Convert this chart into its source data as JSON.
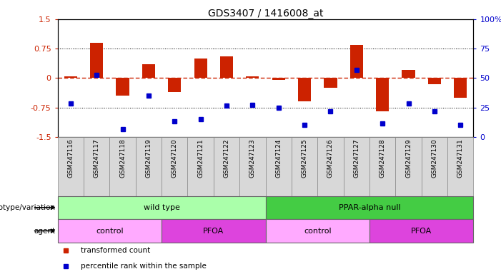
{
  "title": "GDS3407 / 1416008_at",
  "samples": [
    "GSM247116",
    "GSM247117",
    "GSM247118",
    "GSM247119",
    "GSM247120",
    "GSM247121",
    "GSM247122",
    "GSM247123",
    "GSM247124",
    "GSM247125",
    "GSM247126",
    "GSM247127",
    "GSM247128",
    "GSM247129",
    "GSM247130",
    "GSM247131"
  ],
  "bar_values": [
    0.05,
    0.9,
    -0.45,
    0.35,
    -0.35,
    0.5,
    0.55,
    0.05,
    -0.05,
    -0.6,
    -0.25,
    0.85,
    -0.85,
    0.2,
    -0.15,
    -0.5
  ],
  "dot_values": [
    -0.65,
    0.08,
    -1.3,
    -0.45,
    -1.1,
    -1.05,
    -0.7,
    -0.68,
    -0.75,
    -1.2,
    -0.85,
    0.2,
    -1.15,
    -0.65,
    -0.85,
    -1.2
  ],
  "bar_color": "#cc2200",
  "dot_color": "#0000cc",
  "ylim": [
    -1.5,
    1.5
  ],
  "yticks_left": [
    -1.5,
    -0.75,
    0.0,
    0.75,
    1.5
  ],
  "yticks_right": [
    0,
    25,
    50,
    75,
    100
  ],
  "hline_color": "#cc2200",
  "dotted_lines": [
    -0.75,
    0.75
  ],
  "genotype_groups": [
    {
      "label": "wild type",
      "start": 0,
      "end": 8,
      "color": "#aaffaa"
    },
    {
      "label": "PPAR-alpha null",
      "start": 8,
      "end": 16,
      "color": "#44cc44"
    }
  ],
  "agent_groups": [
    {
      "label": "control",
      "start": 0,
      "end": 4,
      "color": "#ffaaff"
    },
    {
      "label": "PFOA",
      "start": 4,
      "end": 8,
      "color": "#dd44dd"
    },
    {
      "label": "control",
      "start": 8,
      "end": 12,
      "color": "#ffaaff"
    },
    {
      "label": "PFOA",
      "start": 12,
      "end": 16,
      "color": "#dd44dd"
    }
  ],
  "legend_items": [
    {
      "label": "transformed count",
      "color": "#cc2200"
    },
    {
      "label": "percentile rank within the sample",
      "color": "#0000cc"
    }
  ],
  "row_labels": [
    "genotype/variation",
    "agent"
  ],
  "bg_color": "#ffffff",
  "plot_bg": "#ffffff",
  "tick_cell_color": "#d8d8d8",
  "bar_width": 0.5
}
